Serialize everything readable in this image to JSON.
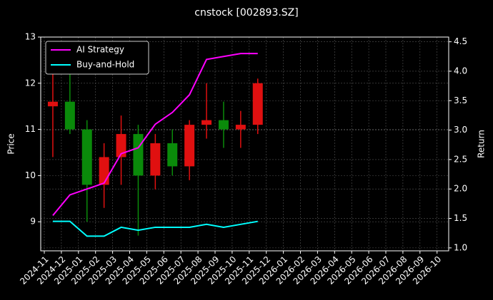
{
  "chart_data": {
    "type": "candlestick",
    "title": "cnstock [002893.SZ]",
    "ylabel": "Price",
    "y2label": "Return",
    "x": [
      "2024-11",
      "2024-12",
      "2025-01",
      "2025-02",
      "2025-03",
      "2025-04",
      "2025-05",
      "2025-06",
      "2025-07",
      "2025-08",
      "2025-09",
      "2025-10",
      "2025-11"
    ],
    "open": [
      11.5,
      11.6,
      11.0,
      9.8,
      10.4,
      10.9,
      10.0,
      10.7,
      10.2,
      11.1,
      11.2,
      11.0,
      11.1
    ],
    "high": [
      12.2,
      12.4,
      11.2,
      10.7,
      11.3,
      11.1,
      10.9,
      11.0,
      11.2,
      12.0,
      11.6,
      11.4,
      12.1
    ],
    "low": [
      10.4,
      10.9,
      9.0,
      9.3,
      9.8,
      8.7,
      9.7,
      10.0,
      9.9,
      10.8,
      10.6,
      10.6,
      10.9
    ],
    "close": [
      11.6,
      11.0,
      9.8,
      10.4,
      10.9,
      10.0,
      10.7,
      10.2,
      11.1,
      11.2,
      11.0,
      11.1,
      12.0
    ],
    "up_color": "#e01010",
    "down_color": "#0a8a0a",
    "series": [
      {
        "name": "AI Strategy",
        "color": "#ff00ff",
        "axis": "y2",
        "values": [
          1.55,
          1.9,
          2.0,
          2.1,
          2.6,
          2.7,
          3.1,
          3.3,
          3.6,
          4.2,
          4.25,
          4.3,
          4.3
        ]
      },
      {
        "name": "Buy-and-Hold",
        "color": "#00ffff",
        "axis": "y2",
        "values": [
          1.45,
          1.45,
          1.2,
          1.2,
          1.35,
          1.3,
          1.35,
          1.35,
          1.35,
          1.4,
          1.35,
          1.4,
          1.45
        ]
      }
    ],
    "xticks": [
      "2024-11",
      "2024-12",
      "2025-01",
      "2025-02",
      "2025-03",
      "2025-04",
      "2025-05",
      "2025-06",
      "2025-07",
      "2025-08",
      "2025-09",
      "2025-10",
      "2025-11",
      "2025-12",
      "2026-01",
      "2026-02",
      "2026-03",
      "2026-04",
      "2026-05",
      "2026-06",
      "2026-07",
      "2026-08",
      "2026-09",
      "2026-10"
    ],
    "ylim": [
      8.37,
      13
    ],
    "yticks": [
      9,
      10,
      11,
      12,
      13
    ],
    "y2lim": [
      0.95,
      4.58
    ],
    "y2ticks": [
      1.0,
      1.5,
      2.0,
      2.5,
      3.0,
      3.5,
      4.0,
      4.5
    ],
    "grid": true,
    "legend": "upper left"
  }
}
